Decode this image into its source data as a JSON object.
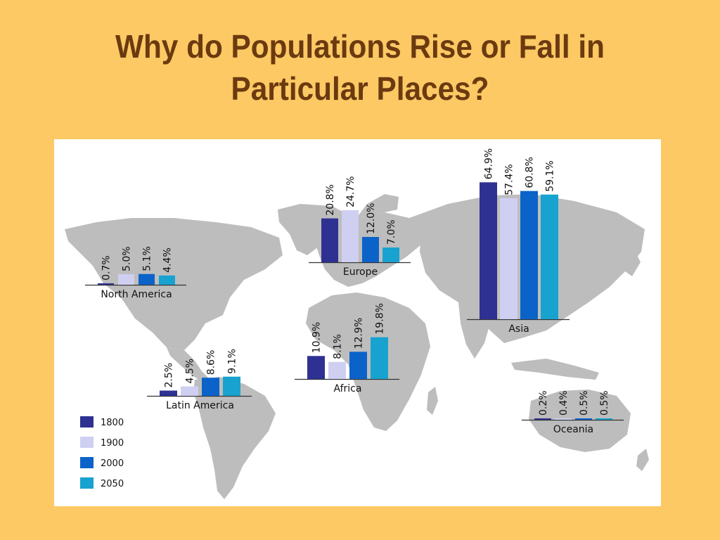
{
  "slide": {
    "title_line1": "Why do Populations Rise or Fall in",
    "title_line2": "Particular Places?"
  },
  "chart_data": {
    "type": "bar",
    "title": "",
    "series": [
      {
        "name": "1800",
        "color": "#2E3192"
      },
      {
        "name": "1900",
        "color": "#CFCFF2"
      },
      {
        "name": "2000",
        "color": "#0B63C9"
      },
      {
        "name": "2050",
        "color": "#18A2CF"
      }
    ],
    "regions": [
      {
        "name": "North America",
        "values": [
          0.7,
          5.0,
          5.1,
          4.4
        ],
        "labels": [
          "0.7%",
          "5.0%",
          "5.1%",
          "4.4%"
        ]
      },
      {
        "name": "Latin America",
        "values": [
          2.5,
          4.5,
          8.6,
          9.1
        ],
        "labels": [
          "2.5%",
          "4.5%",
          "8.6%",
          "9.1%"
        ]
      },
      {
        "name": "Europe",
        "values": [
          20.8,
          24.7,
          12.0,
          7.0
        ],
        "labels": [
          "20.8%",
          "24.7%",
          "12.0%",
          "7.0%"
        ]
      },
      {
        "name": "Africa",
        "values": [
          10.9,
          8.1,
          12.9,
          19.8
        ],
        "labels": [
          "10.9%",
          "8.1%",
          "12.9%",
          "19.8%"
        ]
      },
      {
        "name": "Asia",
        "values": [
          64.9,
          57.4,
          60.8,
          59.1
        ],
        "labels": [
          "64.9%",
          "57.4%",
          "60.8%",
          "59.1%"
        ]
      },
      {
        "name": "Oceania",
        "values": [
          0.2,
          0.4,
          0.5,
          0.5
        ],
        "labels": [
          "0.2%",
          "0.4%",
          "0.5%",
          "0.5%"
        ]
      }
    ],
    "unit": "%",
    "legend": "bottom-left",
    "background": "world-map",
    "map_color": "#BDBDBD"
  }
}
